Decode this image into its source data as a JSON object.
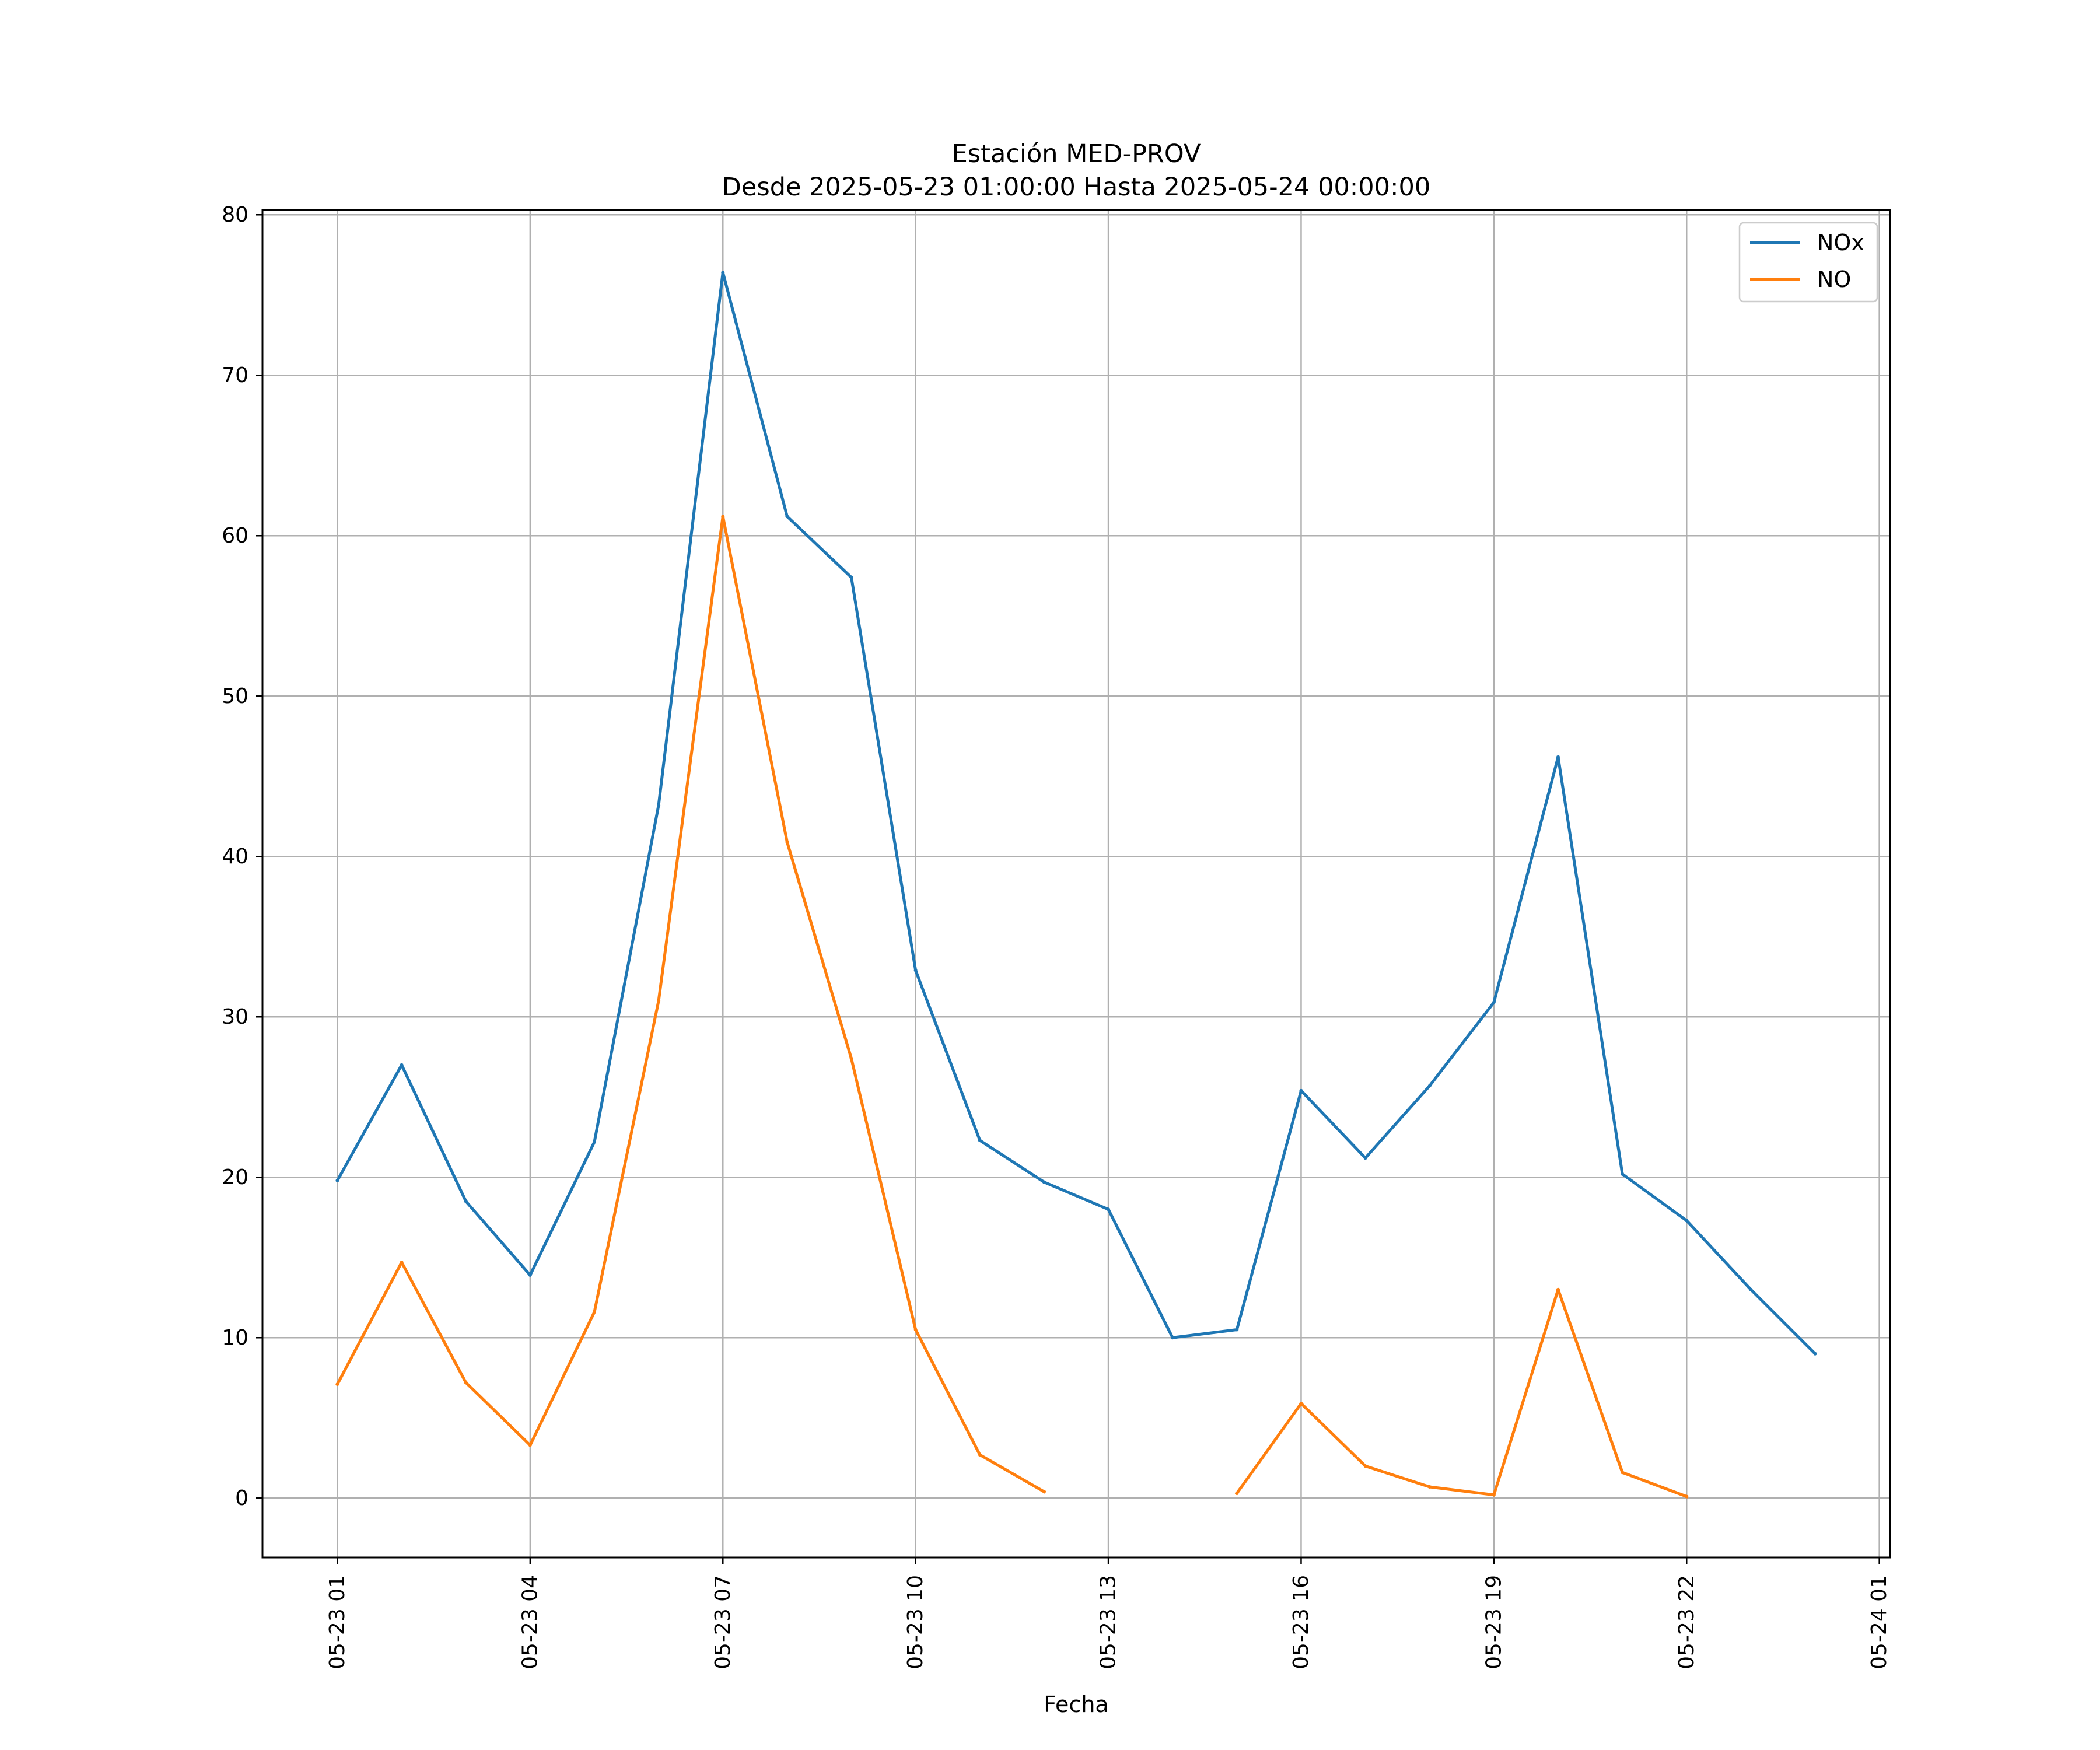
{
  "chart_data": {
    "type": "line",
    "title": "Estación MED-PROV",
    "subtitle": "Desde 2025-05-23 01:00:00 Hasta 2025-05-24 00:00:00",
    "xlabel": "Fecha",
    "ylabel": "",
    "x_range": [
      "2025-05-22 23:50",
      "2025-05-24 01:10"
    ],
    "ylim": [
      -3.7,
      80.3
    ],
    "x_ticks": [
      {
        "x": "2025-05-23 01:00",
        "label": "05-23 01"
      },
      {
        "x": "2025-05-23 04:00",
        "label": "05-23 04"
      },
      {
        "x": "2025-05-23 07:00",
        "label": "05-23 07"
      },
      {
        "x": "2025-05-23 10:00",
        "label": "05-23 10"
      },
      {
        "x": "2025-05-23 13:00",
        "label": "05-23 13"
      },
      {
        "x": "2025-05-23 16:00",
        "label": "05-23 16"
      },
      {
        "x": "2025-05-23 19:00",
        "label": "05-23 19"
      },
      {
        "x": "2025-05-23 22:00",
        "label": "05-23 22"
      },
      {
        "x": "2025-05-24 01:00",
        "label": "05-24 01"
      }
    ],
    "y_ticks": [
      {
        "y": 0,
        "label": "0"
      },
      {
        "y": 10,
        "label": "10"
      },
      {
        "y": 20,
        "label": "20"
      },
      {
        "y": 30,
        "label": "30"
      },
      {
        "y": 40,
        "label": "40"
      },
      {
        "y": 50,
        "label": "50"
      },
      {
        "y": 60,
        "label": "60"
      },
      {
        "y": 70,
        "label": "70"
      },
      {
        "y": 80,
        "label": "80"
      }
    ],
    "grid": true,
    "legend_position": "top-right",
    "x": [
      "2025-05-23 01:00",
      "2025-05-23 02:00",
      "2025-05-23 03:00",
      "2025-05-23 04:00",
      "2025-05-23 05:00",
      "2025-05-23 06:00",
      "2025-05-23 07:00",
      "2025-05-23 08:00",
      "2025-05-23 09:00",
      "2025-05-23 10:00",
      "2025-05-23 11:00",
      "2025-05-23 12:00",
      "2025-05-23 13:00",
      "2025-05-23 14:00",
      "2025-05-23 15:00",
      "2025-05-23 16:00",
      "2025-05-23 17:00",
      "2025-05-23 18:00",
      "2025-05-23 19:00",
      "2025-05-23 20:00",
      "2025-05-23 21:00",
      "2025-05-23 22:00",
      "2025-05-23 23:00",
      "2025-05-24 00:00"
    ],
    "series": [
      {
        "name": "NOx",
        "color": "#1f77b4",
        "values": [
          19.8,
          27.0,
          18.5,
          13.9,
          22.2,
          43.2,
          76.4,
          61.2,
          57.4,
          32.9,
          22.3,
          19.7,
          18.0,
          10.0,
          10.5,
          25.4,
          21.2,
          25.7,
          30.9,
          46.2,
          20.2,
          17.3,
          13.0,
          9.0
        ]
      },
      {
        "name": "NO",
        "color": "#ff7f0e",
        "values": [
          7.1,
          14.7,
          7.2,
          3.3,
          11.6,
          31.0,
          61.2,
          40.9,
          27.4,
          10.5,
          2.7,
          0.4,
          null,
          null,
          0.3,
          5.9,
          2.0,
          0.7,
          0.2,
          13.0,
          1.6,
          0.1,
          null,
          null
        ]
      }
    ]
  }
}
